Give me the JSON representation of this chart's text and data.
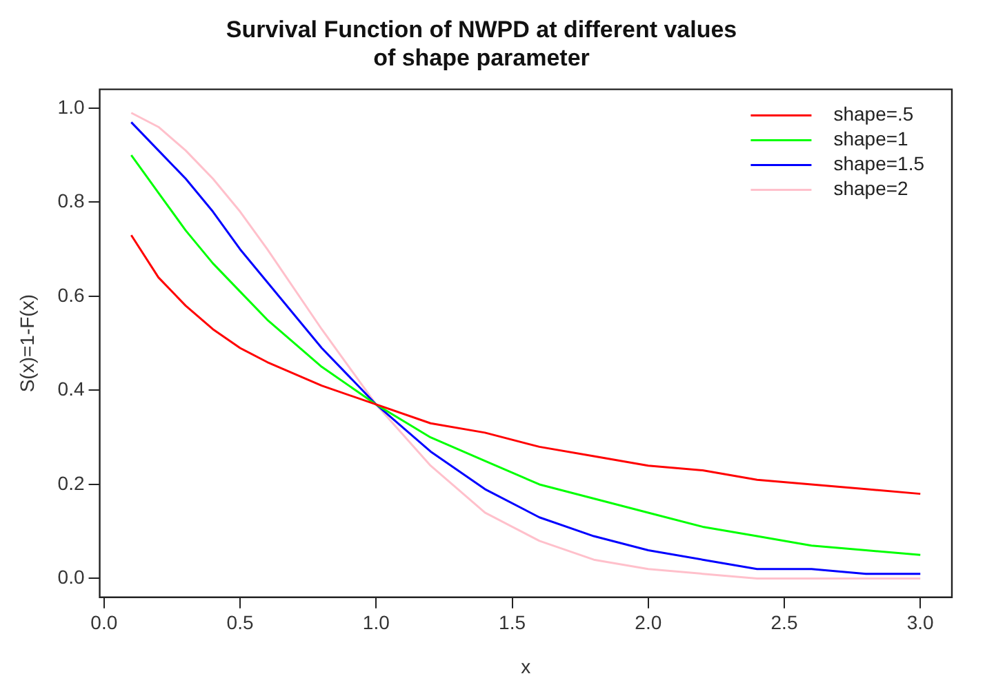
{
  "chart_data": {
    "type": "line",
    "title": [
      "Survival Function of NWPD at different values",
      "of shape parameter"
    ],
    "xlabel": "x",
    "ylabel": "S(x)=1-F(x)",
    "x": [
      0.1,
      0.2,
      0.3,
      0.4,
      0.5,
      0.6,
      0.8,
      1.0,
      1.2,
      1.4,
      1.6,
      1.8,
      2.0,
      2.2,
      2.4,
      2.6,
      2.8,
      3.0
    ],
    "series": [
      {
        "name": "shape=.5",
        "color": "#ff0000",
        "values": [
          0.73,
          0.64,
          0.58,
          0.53,
          0.49,
          0.46,
          0.41,
          0.37,
          0.33,
          0.31,
          0.28,
          0.26,
          0.24,
          0.23,
          0.21,
          0.2,
          0.19,
          0.18
        ]
      },
      {
        "name": "shape=1",
        "color": "#00ff00",
        "values": [
          0.9,
          0.82,
          0.74,
          0.67,
          0.61,
          0.55,
          0.45,
          0.37,
          0.3,
          0.25,
          0.2,
          0.17,
          0.14,
          0.11,
          0.09,
          0.07,
          0.06,
          0.05
        ]
      },
      {
        "name": "shape=1.5",
        "color": "#0000ff",
        "values": [
          0.97,
          0.91,
          0.85,
          0.78,
          0.7,
          0.63,
          0.49,
          0.37,
          0.27,
          0.19,
          0.13,
          0.09,
          0.06,
          0.04,
          0.02,
          0.02,
          0.01,
          0.01
        ]
      },
      {
        "name": "shape=2",
        "color": "#ffc0cb",
        "values": [
          0.99,
          0.96,
          0.91,
          0.85,
          0.78,
          0.7,
          0.53,
          0.37,
          0.24,
          0.14,
          0.08,
          0.04,
          0.02,
          0.01,
          0,
          0,
          0,
          0
        ]
      }
    ],
    "xlim": [
      -0.016,
      3.116
    ],
    "xticks": [
      {
        "value": 0,
        "label": "0.0"
      },
      0.5,
      {
        "value": 1,
        "label": "1.0"
      },
      1.5,
      {
        "value": 2,
        "label": "2.0"
      },
      2.5,
      {
        "value": 3,
        "label": "3.0"
      }
    ],
    "ylim": [
      -0.04,
      1.04
    ],
    "yticks": [
      {
        "value": 0,
        "label": "0.0"
      },
      0.2,
      0.4,
      0.6,
      0.8,
      {
        "value": 1,
        "label": "1.0"
      }
    ],
    "grid": false,
    "legend": "top right",
    "marker": "none",
    "line_style": "solid"
  }
}
